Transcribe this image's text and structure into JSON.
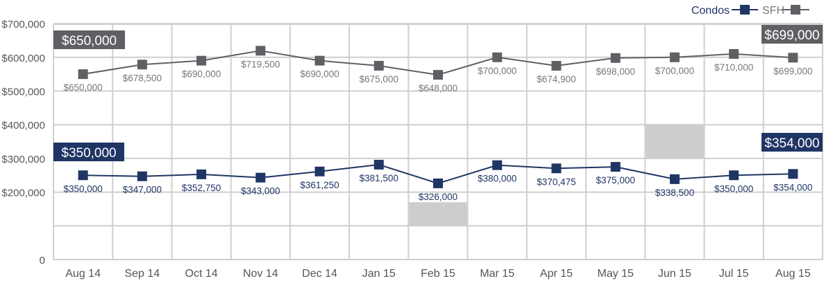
{
  "chart_data": {
    "type": "line",
    "title": "",
    "xlabel": "",
    "ylabel": "",
    "ylim": [
      0,
      800000
    ],
    "grid": true,
    "legend_placement": "top-right",
    "categories": [
      "Aug 14",
      "Sep 14",
      "Oct 14",
      "Nov 14",
      "Dec 14",
      "Jan 15",
      "Feb 15",
      "Mar 15",
      "Apr 15",
      "May 15",
      "Jun 15",
      "Jul 15",
      "Aug 15"
    ],
    "y_ticks": [
      0,
      200000,
      300000,
      400000,
      500000,
      600000,
      700000
    ],
    "y_tick_labels": [
      "0",
      "$200,000",
      "$300,000",
      "$400,000",
      "$500,000",
      "$600,000",
      "$700,000"
    ],
    "series": [
      {
        "name": "Condos",
        "color": "#1f3564",
        "values": [
          350000,
          347000,
          352750,
          343000,
          361250,
          381500,
          326000,
          380000,
          370475,
          375000,
          338500,
          350000,
          354000
        ],
        "labels": [
          "$350,000",
          "$347,000",
          "$352,750",
          "$343,000",
          "$361,250",
          "$381,500",
          "$326,000",
          "$380,000",
          "$370,475",
          "$375,000",
          "$338,500",
          "$350,000",
          "$354,000"
        ],
        "start_callout": "$350,000",
        "end_callout": "$354,000"
      },
      {
        "name": "SFH",
        "color": "#5f6064",
        "values": [
          650000,
          678500,
          690000,
          719500,
          690000,
          675000,
          648000,
          700000,
          674900,
          698000,
          700000,
          710000,
          699000
        ],
        "labels": [
          "$650,000",
          "$678,500",
          "$690,000",
          "$719,500",
          "$690,000",
          "$675,000",
          "$648,000",
          "$700,000",
          "$674,900",
          "$698,000",
          "$700,000",
          "$710,000",
          "$699,000"
        ],
        "start_callout": "$650,000",
        "end_callout": "$699,000"
      }
    ],
    "highlights": [
      {
        "category": "Feb 15",
        "from": 200000,
        "to": 270000
      },
      {
        "category": "Jun 15",
        "from": 400000,
        "to": 500000
      }
    ],
    "grid_color": "#cfcfcf",
    "highlight_color": "#cccdcf"
  }
}
